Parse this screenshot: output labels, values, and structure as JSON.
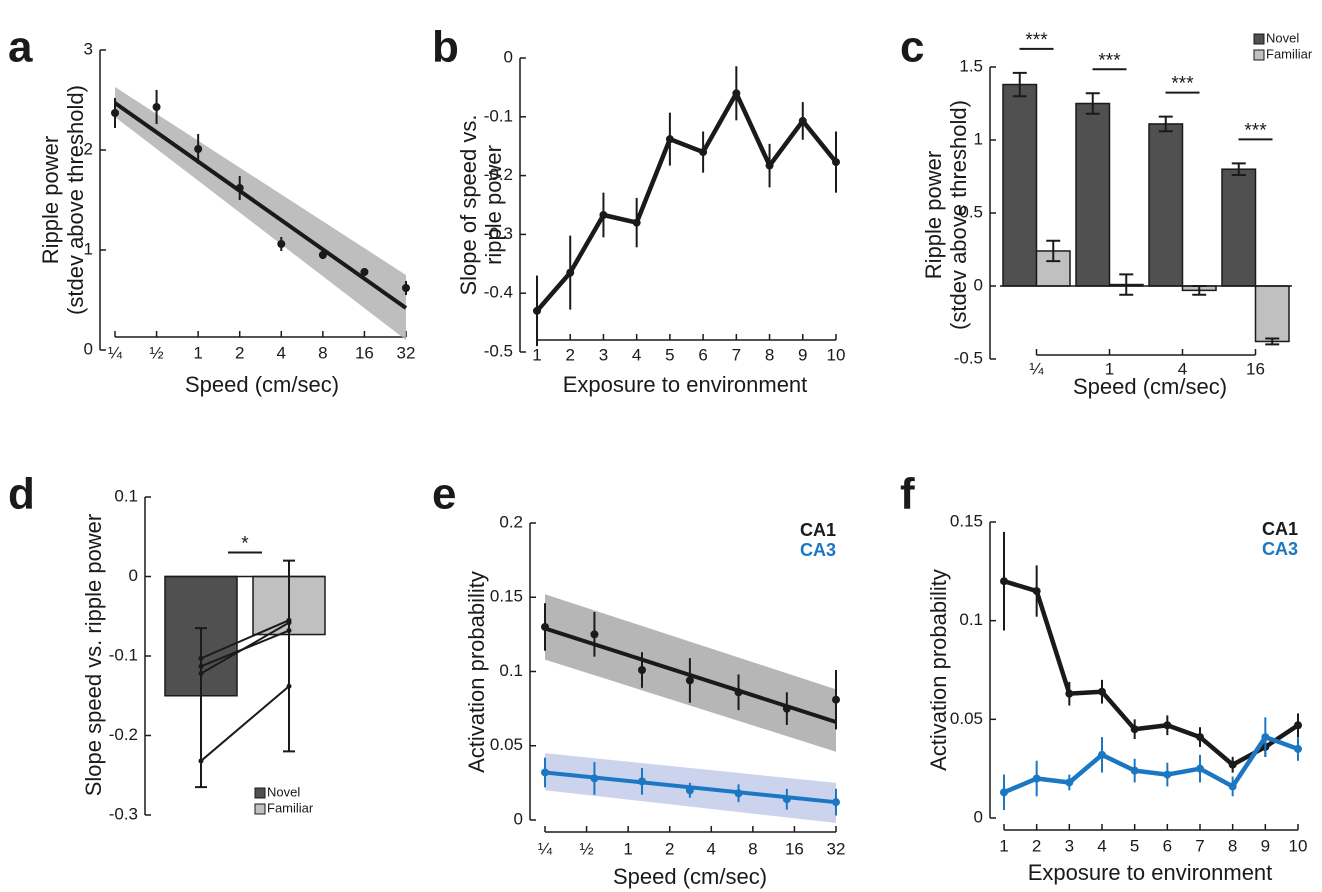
{
  "chart_data": [
    {
      "panel": "a",
      "type": "scatter",
      "ylabel": [
        "Ripple power",
        "(stdev above threshold)"
      ],
      "xlabel": "Speed (cm/sec)",
      "categories": [
        "¼",
        "½",
        "1",
        "2",
        "4",
        "8",
        "16",
        "32"
      ],
      "ylim": [
        0,
        3
      ],
      "yticks": [
        0,
        1,
        2,
        3
      ],
      "series": [
        {
          "color": "#1a1a1a",
          "values": [
            2.37,
            2.43,
            2.01,
            1.62,
            1.06,
            0.95,
            0.78,
            0.62
          ],
          "errors": [
            0.15,
            0.17,
            0.15,
            0.12,
            0.07,
            0.04,
            0.04,
            0.07
          ],
          "fit": {
            "values": [
              2.47,
              0.42
            ],
            "lower": [
              2.33,
              0.1
            ],
            "upper": [
              2.63,
              0.75
            ],
            "band_color": "#b3b3b3"
          }
        }
      ]
    },
    {
      "panel": "b",
      "type": "line",
      "ylabel": [
        "Slope of speed vs.",
        "ripple power"
      ],
      "xlabel": "Exposure to environment",
      "categories": [
        "1",
        "2",
        "3",
        "4",
        "5",
        "6",
        "7",
        "8",
        "9",
        "10"
      ],
      "ylim": [
        -0.5,
        0
      ],
      "yticks": [
        0,
        -0.1,
        -0.2,
        -0.3,
        -0.4,
        -0.5
      ],
      "series": [
        {
          "color": "#1a1a1a",
          "values": [
            -0.43,
            -0.365,
            -0.267,
            -0.28,
            -0.138,
            -0.16,
            -0.06,
            -0.183,
            -0.107,
            -0.177
          ],
          "errors": [
            0.06,
            0.063,
            0.038,
            0.042,
            0.045,
            0.035,
            0.046,
            0.037,
            0.032,
            0.052
          ]
        }
      ]
    },
    {
      "panel": "c",
      "type": "bar",
      "ylabel": [
        "Ripple power",
        "(stdev above threshold)"
      ],
      "xlabel": "Speed (cm/sec)",
      "categories": [
        "¼",
        "1",
        "4",
        "16"
      ],
      "ylim": [
        -0.5,
        1.5
      ],
      "yticks": [
        1.5,
        1,
        0.5,
        0,
        -0.5
      ],
      "legend": "upper right",
      "series": [
        {
          "name": "Novel",
          "color": "#505050",
          "values": [
            1.38,
            1.25,
            1.11,
            0.8
          ],
          "errors": [
            0.08,
            0.07,
            0.05,
            0.04
          ]
        },
        {
          "name": "Familiar",
          "color": "#c0c0c0",
          "values": [
            0.24,
            0.01,
            -0.03,
            -0.38
          ],
          "errors": [
            0.07,
            0.07,
            0.03,
            0.02
          ]
        }
      ],
      "annotations": [
        "***",
        "***",
        "***",
        "***"
      ]
    },
    {
      "panel": "d",
      "type": "bar",
      "ylabel": [
        "Slope speed vs. ripple power"
      ],
      "categories": [
        null
      ],
      "ylim": [
        -0.3,
        0.1
      ],
      "yticks": [
        0.1,
        0,
        -0.1,
        -0.2,
        -0.3
      ],
      "legend": "lower right",
      "series": [
        {
          "name": "Novel",
          "color": "#505050",
          "values": [
            -0.15
          ]
        },
        {
          "name": "Familiar",
          "color": "#c0c0c0",
          "values": [
            -0.073
          ]
        }
      ],
      "error_bars": {
        "centers": [
          -0.165,
          -0.1
        ],
        "errors": [
          0.1,
          0.12
        ]
      },
      "paired": [
        [
          -0.103,
          -0.055
        ],
        [
          -0.113,
          -0.068
        ],
        [
          -0.122,
          -0.058
        ],
        [
          -0.232,
          -0.138
        ]
      ],
      "annotations": [
        "*"
      ]
    },
    {
      "panel": "e",
      "type": "scatter",
      "ylabel": [
        "Activation probability"
      ],
      "xlabel": "Speed (cm/sec)",
      "x": [
        0.25,
        0.57,
        1.26,
        2.8,
        6.3,
        14.1,
        32
      ],
      "xscale": "log",
      "xlim": [
        0.25,
        32
      ],
      "xticks": [
        {
          "value": 0.25,
          "label": "¼"
        },
        {
          "value": 0.5,
          "label": "½"
        },
        1,
        2,
        4,
        8,
        16,
        32
      ],
      "ylim": [
        0,
        0.2
      ],
      "yticks": [
        0.2,
        0.15,
        0.1,
        0.05,
        0
      ],
      "legend": "upper right",
      "legend_style": "text",
      "series": [
        {
          "name": "CA1",
          "color": "#1a1a1a",
          "values": [
            0.13,
            0.125,
            0.101,
            0.094,
            0.086,
            0.075,
            0.081
          ],
          "errors": [
            0.016,
            0.015,
            0.012,
            0.015,
            0.012,
            0.011,
            0.02
          ],
          "fit": {
            "values": [
              0.129,
              0.066
            ],
            "lower": [
              0.108,
              0.046
            ],
            "upper": [
              0.152,
              0.088
            ],
            "band_color": "#a9a9a9"
          }
        },
        {
          "name": "CA3",
          "color": "#1c77c3",
          "values": [
            0.032,
            0.028,
            0.026,
            0.02,
            0.018,
            0.014,
            0.012
          ],
          "errors": [
            0.01,
            0.011,
            0.009,
            0.005,
            0.006,
            0.007,
            0.009
          ],
          "fit": {
            "values": [
              0.032,
              0.012
            ],
            "lower": [
              0.02,
              -0.002
            ],
            "upper": [
              0.045,
              0.025
            ],
            "band_color": "#c3cbea"
          }
        }
      ]
    },
    {
      "panel": "f",
      "type": "line",
      "ylabel": [
        "Activation probability"
      ],
      "xlabel": "Exposure to environment",
      "categories": [
        "1",
        "2",
        "3",
        "4",
        "5",
        "6",
        "7",
        "8",
        "9",
        "10"
      ],
      "ylim": [
        0,
        0.15
      ],
      "yticks": [
        0.15,
        0.1,
        0.05,
        0
      ],
      "legend": "upper right",
      "legend_style": "text",
      "series": [
        {
          "name": "CA1",
          "color": "#1a1a1a",
          "values": [
            0.12,
            0.115,
            0.063,
            0.064,
            0.045,
            0.047,
            0.041,
            0.027,
            0.036,
            0.047
          ],
          "errors": [
            0.025,
            0.013,
            0.006,
            0.006,
            0.005,
            0.005,
            0.005,
            0.004,
            0.005,
            0.006
          ]
        },
        {
          "name": "CA3",
          "color": "#1c77c3",
          "values": [
            0.013,
            0.02,
            0.018,
            0.032,
            0.024,
            0.022,
            0.025,
            0.016,
            0.041,
            0.035
          ],
          "errors": [
            0.009,
            0.009,
            0.004,
            0.009,
            0.006,
            0.006,
            0.007,
            0.005,
            0.01,
            0.006
          ]
        }
      ]
    }
  ]
}
